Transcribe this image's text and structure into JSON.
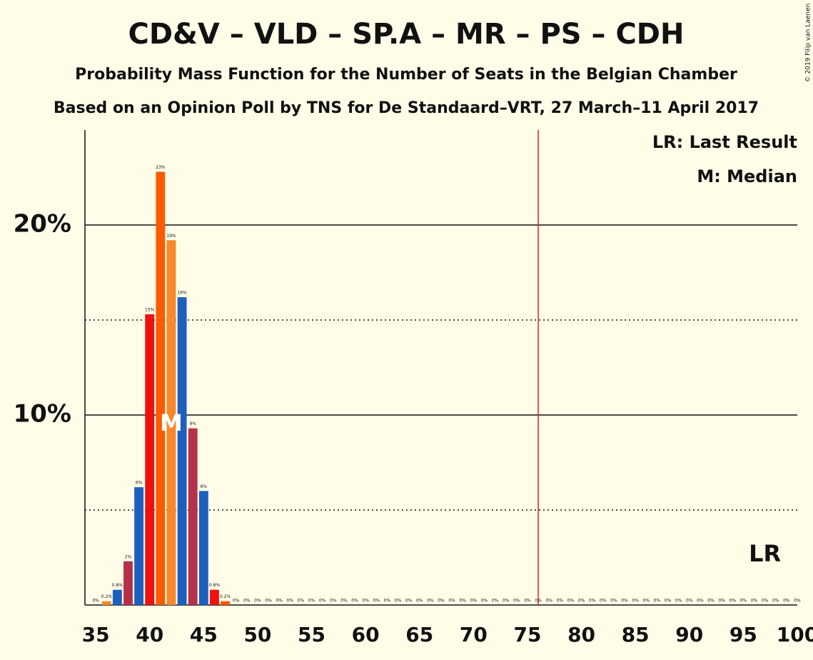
{
  "chart_data": {
    "type": "bar",
    "title": "CD&V – VLD – SP.A – MR – PS – CDH",
    "subtitle": "Probability Mass Function for the Number of Seats in the Belgian Chamber",
    "subtitle2": "Based on an Opinion Poll by TNS for De Standaard–VRT, 27 March–11 April 2017",
    "copyright": "© 2019 Filip van Laenen",
    "legend": [
      "LR: Last Result",
      "M: Median"
    ],
    "x": [
      35,
      36,
      37,
      38,
      39,
      40,
      41,
      42,
      43,
      44,
      45,
      46,
      47,
      48,
      49,
      50,
      51,
      52,
      53,
      54,
      55,
      56,
      57,
      58,
      59,
      60,
      61,
      62,
      63,
      64,
      65,
      66,
      67,
      68,
      69,
      70,
      71,
      72,
      73,
      74,
      75,
      76,
      77,
      78,
      79,
      80,
      81,
      82,
      83,
      84,
      85,
      86,
      87,
      88,
      89,
      90,
      91,
      92,
      93,
      94,
      95,
      96,
      97,
      98,
      99,
      100
    ],
    "values": [
      0,
      0.2,
      0.8,
      2.3,
      6.2,
      15.3,
      22.8,
      19.2,
      16.2,
      9.3,
      6.0,
      0.8,
      0.2,
      0,
      0,
      0,
      0,
      0,
      0,
      0,
      0,
      0,
      0,
      0,
      0,
      0,
      0,
      0,
      0,
      0,
      0,
      0,
      0,
      0,
      0,
      0,
      0,
      0,
      0,
      0,
      0,
      0,
      0,
      0,
      0,
      0,
      0,
      0,
      0,
      0,
      0,
      0,
      0,
      0,
      0,
      0,
      0,
      0,
      0,
      0,
      0,
      0,
      0,
      0,
      0,
      0
    ],
    "value_labels": [
      "0%",
      "0.2%",
      "0.8%",
      "2%",
      "6%",
      "15%",
      "23%",
      "19%",
      "16%",
      "9%",
      "6%",
      "0.8%",
      "0.2%",
      "0%",
      "0%",
      "0%",
      "0%",
      "0%",
      "0%",
      "0%",
      "0%",
      "0%",
      "0%",
      "0%",
      "0%",
      "0%",
      "0%",
      "0%",
      "0%",
      "0%",
      "0%",
      "0%",
      "0%",
      "0%",
      "0%",
      "0%",
      "0%",
      "0%",
      "0%",
      "0%",
      "0%",
      "0%",
      "0%",
      "0%",
      "0%",
      "0%",
      "0%",
      "0%",
      "0%",
      "0%",
      "0%",
      "0%",
      "0%",
      "0%",
      "0%",
      "0%",
      "0%",
      "0%",
      "0%",
      "0%",
      "0%",
      "0%",
      "0%",
      "0%",
      "0%",
      "0%"
    ],
    "colors": [
      "#ff5a00",
      "#f7892c",
      "#1d5fbf",
      "#b5304c",
      "#1d5fbf",
      "#ee1111"
    ],
    "xlim": [
      34,
      100
    ],
    "xticks": [
      35,
      40,
      45,
      50,
      55,
      60,
      65,
      70,
      75,
      80,
      85,
      90,
      95,
      100
    ],
    "ylim": [
      0,
      25
    ],
    "yticks": [
      {
        "value": 10,
        "label": "10%"
      },
      {
        "value": 20,
        "label": "20%"
      }
    ],
    "minor_grid": [
      5,
      15
    ],
    "majority": 76,
    "median": 42,
    "median_label": "M",
    "last_result": 97,
    "last_result_label": "LR"
  }
}
